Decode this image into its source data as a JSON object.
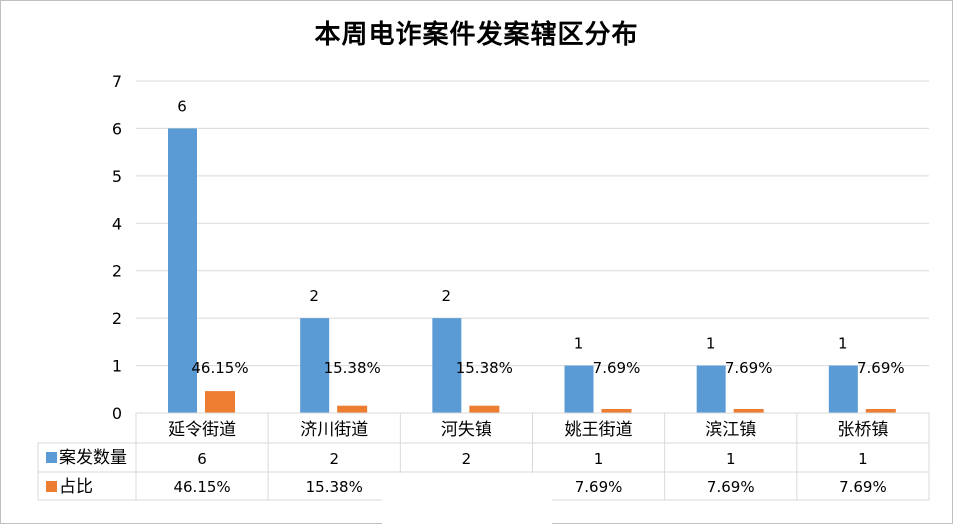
{
  "title": "本周电诈案件发案辖区分布",
  "colors": {
    "series1": "#5b9bd5",
    "series2": "#ed7d31",
    "grid": "#d9d9d9",
    "axis": "#d9d9d9"
  },
  "chart_data": {
    "type": "bar",
    "title": "本周电诈案件发案辖区分布",
    "categories": [
      "延令街道",
      "济川街道",
      "河失镇",
      "姚王街道",
      "滨江镇",
      "张桥镇"
    ],
    "yticks": [
      "0",
      "1",
      "2",
      "2",
      "3",
      "4",
      "5",
      "6",
      "7"
    ],
    "ylim": [
      0,
      7
    ],
    "grid": true,
    "legend": "data-table",
    "series": [
      {
        "name": "案发数量",
        "values": [
          6,
          2,
          2,
          1,
          1,
          1
        ],
        "labels": [
          "6",
          "2",
          "2",
          "1",
          "1",
          "1"
        ]
      },
      {
        "name": "占比",
        "values": [
          0.4615,
          0.1538,
          0.1538,
          0.0769,
          0.0769,
          0.0769
        ],
        "labels": [
          "46.15%",
          "15.38%",
          "15.38%",
          "7.69%",
          "7.69%",
          "7.69%"
        ]
      }
    ]
  },
  "table": {
    "row1": {
      "label": "案发数量",
      "values": [
        "6",
        "2",
        "2",
        "1",
        "1",
        "1"
      ]
    },
    "row2": {
      "label": "占比",
      "values": [
        "46.15%",
        "15.38%",
        "",
        "7.69%",
        "7.69%",
        "7.69%"
      ]
    }
  }
}
